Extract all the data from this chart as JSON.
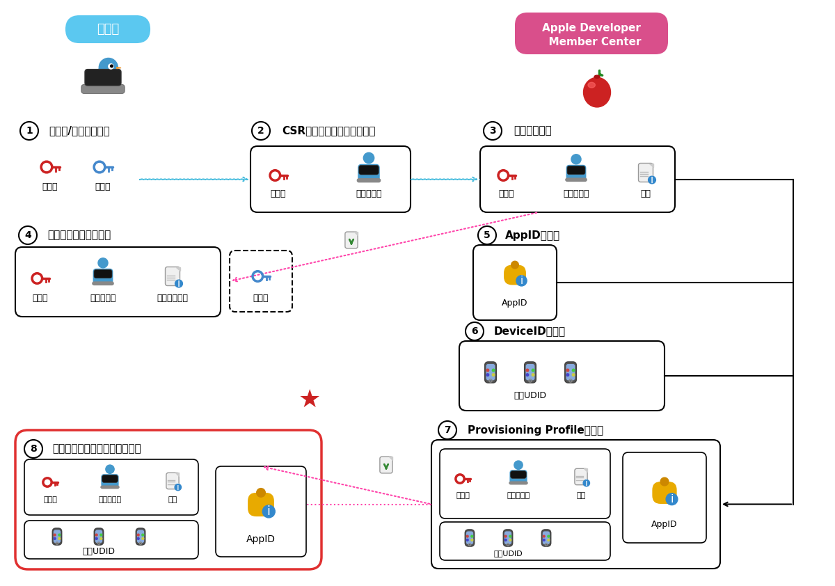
{
  "bg_color": "#ffffff",
  "dev_label": "開発者",
  "dev_label_bg": "#5bc8f0",
  "apple_label_line1": "Apple Developer",
  "apple_label_line2": "  Member Center",
  "apple_label_bg": "#d94f8b",
  "step1_label": "秘密鍵/公開鍵の作成",
  "step2_label": "CSR（証明書署名要求）作成",
  "step3_label": "証明書の発行",
  "step4_label": "証明書の登録・紐付け",
  "step5_label": "AppIDの登録",
  "step6_label": "DeviceIDの登録",
  "step7_label": "Provisioning Profileの登録",
  "step8_label": "ビルド・アーカイブ設定・実行",
  "label_koukaiken": "公開鍵",
  "label_himitsuken": "秘密鍵",
  "label_kaihatsushajoho": "開発者情報",
  "label_shomei": "署名",
  "label_dijitaishomei": "デジタル署名",
  "label_appid": "AppID",
  "label_tanmatsuudid": "端末UDID",
  "arrow_color": "#44bbdd",
  "pink_arrow_color": "#ff44aa",
  "red_border_color": "#e03030",
  "star_color": "#cc2222",
  "key_red": "#cc2222",
  "key_blue": "#4488cc",
  "icon_yellow": "#ddaa22"
}
